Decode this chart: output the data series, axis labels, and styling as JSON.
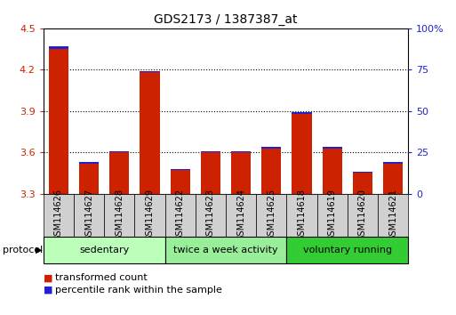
{
  "title": "GDS2173 / 1387387_at",
  "samples": [
    "GSM114626",
    "GSM114627",
    "GSM114628",
    "GSM114629",
    "GSM114622",
    "GSM114623",
    "GSM114624",
    "GSM114625",
    "GSM114618",
    "GSM114619",
    "GSM114620",
    "GSM114621"
  ],
  "red_values": [
    4.35,
    3.52,
    3.6,
    4.18,
    3.47,
    3.6,
    3.6,
    3.63,
    3.88,
    3.63,
    3.45,
    3.52
  ],
  "blue_values": [
    0.018,
    0.01,
    0.01,
    0.01,
    0.009,
    0.011,
    0.011,
    0.011,
    0.011,
    0.011,
    0.009,
    0.01
  ],
  "y_min": 3.3,
  "y_max": 4.5,
  "y_ticks": [
    3.3,
    3.6,
    3.9,
    4.2,
    4.5
  ],
  "right_y_ticks": [
    0,
    25,
    50,
    75,
    100
  ],
  "right_y_labels": [
    "0",
    "25",
    "50",
    "75",
    "100%"
  ],
  "groups": [
    {
      "label": "sedentary",
      "start": 0,
      "end": 4,
      "color": "#ccffcc"
    },
    {
      "label": "twice a week activity",
      "start": 4,
      "end": 8,
      "color": "#aaffaa"
    },
    {
      "label": "voluntary running",
      "start": 8,
      "end": 12,
      "color": "#44dd44"
    }
  ],
  "protocol_label": "protocol",
  "legend_red": "transformed count",
  "legend_blue": "percentile rank within the sample",
  "bar_color_red": "#cc2200",
  "bar_color_blue": "#2222cc",
  "bar_width": 0.65,
  "tick_color_red": "#cc2200",
  "tick_color_blue": "#2222cc",
  "bg_color": "#ffffff",
  "sample_box_color": "#d0d0d0",
  "group_light": "#bbffbb",
  "group_mid": "#99ee99",
  "group_dark": "#33cc33"
}
